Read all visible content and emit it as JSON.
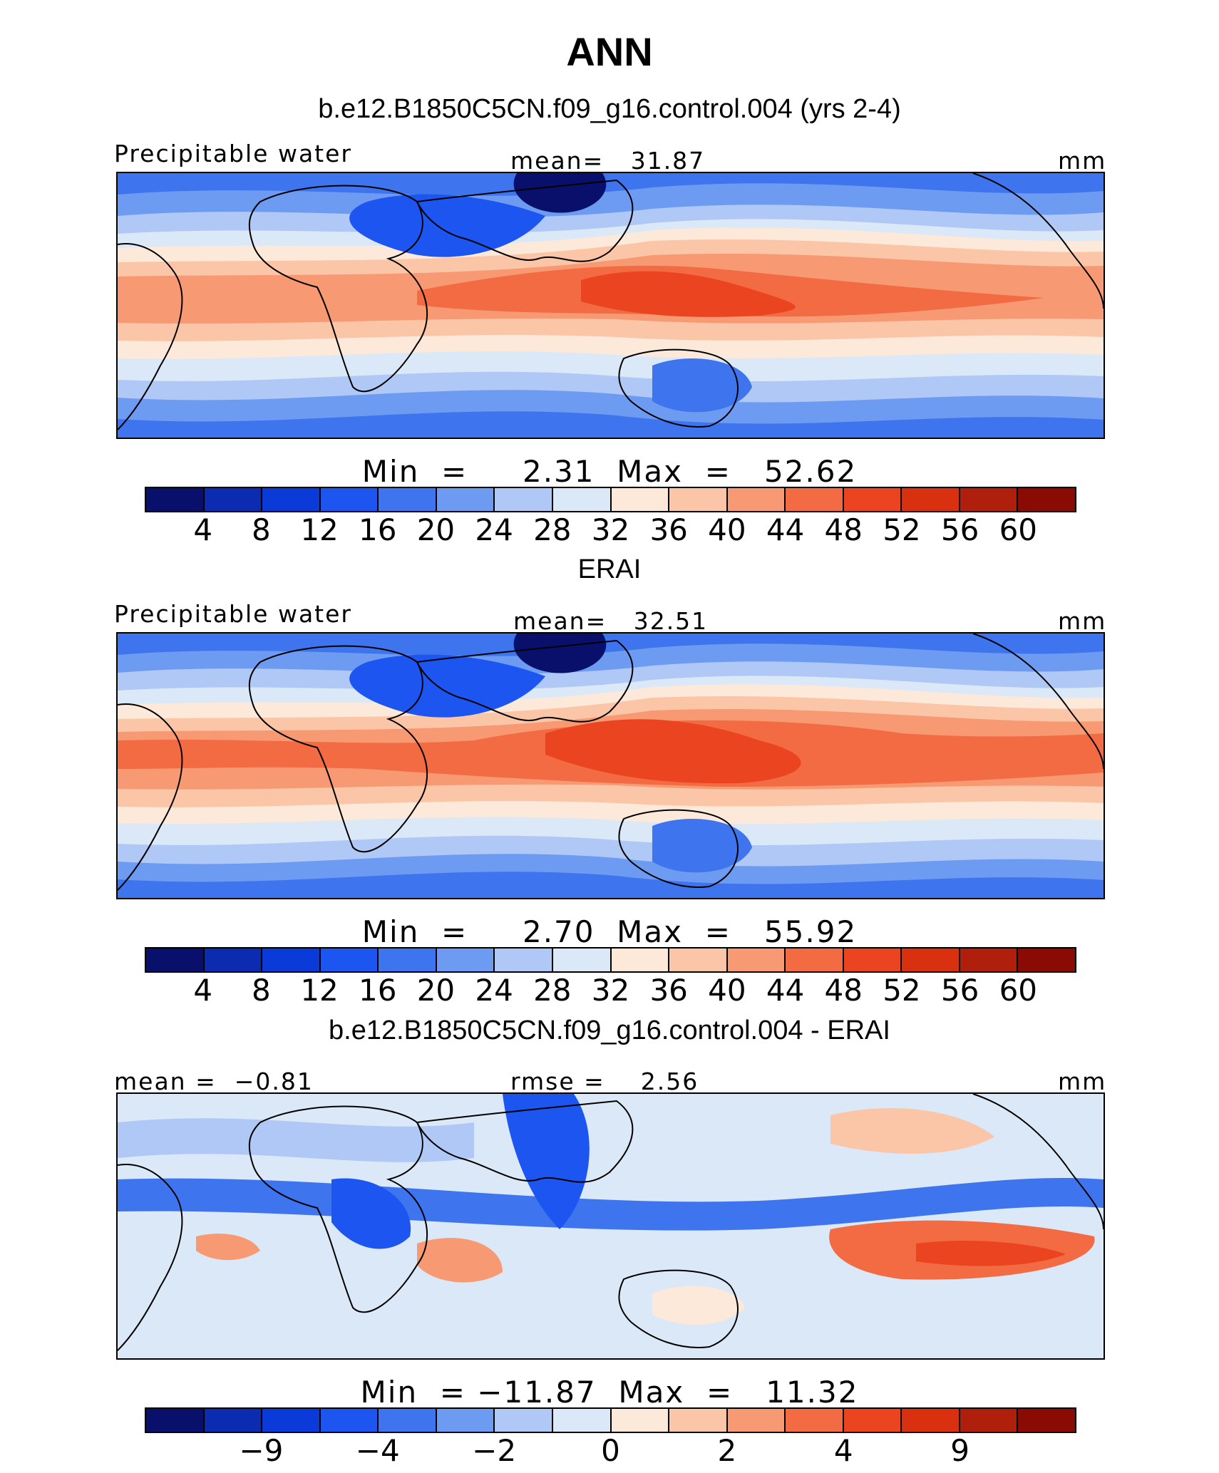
{
  "header": {
    "title": "ANN",
    "case_title": "b.e12.B1850C5CN.f09_g16.control.004 (yrs 2-4)",
    "obs_title": "ERAI",
    "diff_title": "b.e12.B1850C5CN.f09_g16.control.004 - ERAI"
  },
  "colors": [
    "#08106b",
    "#0b2cb0",
    "#0a3bd8",
    "#1c55f0",
    "#3e74ee",
    "#6e9bf2",
    "#b0c8f5",
    "#dbe8f8",
    "#fde9d9",
    "#fbc6a8",
    "#f79a73",
    "#f26b42",
    "#ea4520",
    "#d93010",
    "#b01e0c",
    "#8a0a04"
  ],
  "chart_data": [
    {
      "type": "heatmap",
      "name": "model",
      "title": "b.e12.B1850C5CN.f09_g16.control.004 (yrs 2-4)",
      "left_label": "Precipitable water",
      "center_label": "mean=   31.87",
      "units": "mm",
      "mean": 31.87,
      "min": 2.31,
      "max": 52.62,
      "min_max_text": "Min  =     2.31  Max  =   52.62",
      "colorbar_levels": [
        "4",
        "8",
        "12",
        "16",
        "20",
        "24",
        "28",
        "32",
        "36",
        "40",
        "44",
        "48",
        "52",
        "56",
        "60"
      ]
    },
    {
      "type": "heatmap",
      "name": "obs",
      "title": "ERAI",
      "left_label": "Precipitable water",
      "center_label": "mean=   32.51",
      "units": "mm",
      "mean": 32.51,
      "min": 2.7,
      "max": 55.92,
      "min_max_text": "Min  =     2.70  Max  =   55.92",
      "colorbar_levels": [
        "4",
        "8",
        "12",
        "16",
        "20",
        "24",
        "28",
        "32",
        "36",
        "40",
        "44",
        "48",
        "52",
        "56",
        "60"
      ]
    },
    {
      "type": "heatmap",
      "name": "diff",
      "title": "b.e12.B1850C5CN.f09_g16.control.004 - ERAI",
      "left_label": "mean =  −0.81",
      "center_label": "rmse =    2.56",
      "units": "mm",
      "mean": -0.81,
      "rmse": 2.56,
      "min": -11.87,
      "max": 11.32,
      "min_max_text": "Min  = −11.87  Max  =   11.32",
      "colorbar_levels": [
        "",
        "−9",
        "",
        "−4",
        "",
        "−2",
        "",
        "0",
        "",
        "2",
        "",
        "4",
        "",
        "9",
        ""
      ]
    }
  ]
}
